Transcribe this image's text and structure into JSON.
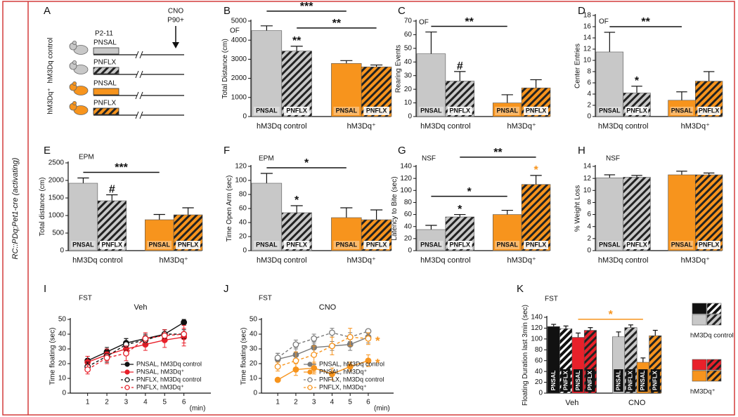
{
  "side_label": "RC::PDq;Pet1-cre (activating)",
  "panel_a": {
    "letter": "A",
    "period": "P2-11",
    "drug": "CNO",
    "drug_time": "P90+",
    "groups": [
      {
        "label": "hM3Dq control",
        "color": "#c8c8c8",
        "rows": [
          {
            "label": "PNSAL",
            "hatched": false
          },
          {
            "label": "PNFLX",
            "hatched": true
          }
        ]
      },
      {
        "label": "hM3Dq⁺",
        "color": "#f7941d",
        "rows": [
          {
            "label": "PNSAL",
            "hatched": false
          },
          {
            "label": "PNFLX",
            "hatched": true
          }
        ]
      }
    ]
  },
  "chart_data": [
    {
      "type": "bar",
      "panel": "B",
      "test": "OF",
      "ylabel": "Total Distance (cm)",
      "ylim": [
        0,
        5000
      ],
      "yticks": [
        0,
        1000,
        2000,
        3000,
        4000,
        5000
      ],
      "groups": [
        "hM3Dq control",
        "hM3Dq⁺"
      ],
      "categories": [
        "PNSAL",
        "PNFLX",
        "PNSAL",
        "PNFLX"
      ],
      "values": [
        4500,
        3430,
        2780,
        2600
      ],
      "errors": [
        250,
        250,
        150,
        100
      ],
      "colors": [
        "#c8c8c8",
        "#c8c8c8",
        "#f7941d",
        "#f7941d"
      ],
      "hatched": [
        false,
        true,
        false,
        true
      ],
      "significance": [
        {
          "bars": [
            1
          ],
          "label": "**"
        },
        {
          "bars": [
            1,
            3
          ],
          "label": "**"
        },
        {
          "bars": [
            0,
            2
          ],
          "label": "***"
        }
      ]
    },
    {
      "type": "bar",
      "panel": "C",
      "test": "OF",
      "ylabel": "Rearing Events",
      "ylim": [
        0,
        70
      ],
      "yticks": [
        0,
        10,
        20,
        30,
        40,
        50,
        60,
        70
      ],
      "groups": [
        "hM3Dq control",
        "hM3Dq⁺"
      ],
      "categories": [
        "PNSAL",
        "PNFLX",
        "PNSAL",
        "PNFLX"
      ],
      "values": [
        46,
        26,
        10,
        21
      ],
      "errors": [
        16,
        7,
        6,
        6
      ],
      "colors": [
        "#c8c8c8",
        "#c8c8c8",
        "#f7941d",
        "#f7941d"
      ],
      "hatched": [
        false,
        true,
        false,
        true
      ],
      "significance": [
        {
          "bars": [
            1
          ],
          "label": "#"
        },
        {
          "bars": [
            0,
            2
          ],
          "label": "**"
        }
      ]
    },
    {
      "type": "bar",
      "panel": "D",
      "test": "OF",
      "ylabel": "Center Entries",
      "ylim": [
        0,
        18
      ],
      "yticks": [
        0,
        2,
        4,
        6,
        8,
        10,
        12,
        14,
        16,
        18
      ],
      "groups": [
        "hM3Dq control",
        "hM3Dq⁺"
      ],
      "categories": [
        "PNSAL",
        "PNFLX",
        "PNSAL",
        "PNFLX"
      ],
      "values": [
        11.5,
        4.2,
        2.9,
        6.3
      ],
      "errors": [
        3.5,
        1.2,
        1.5,
        1.7
      ],
      "colors": [
        "#c8c8c8",
        "#c8c8c8",
        "#f7941d",
        "#f7941d"
      ],
      "hatched": [
        false,
        true,
        false,
        true
      ],
      "significance": [
        {
          "bars": [
            1
          ],
          "label": "*"
        },
        {
          "bars": [
            0,
            2
          ],
          "label": "**"
        }
      ]
    },
    {
      "type": "bar",
      "panel": "E",
      "test": "EPM",
      "ylabel": "Total distance (cm)",
      "ylim": [
        0,
        2500
      ],
      "yticks": [
        0,
        500,
        1000,
        1500,
        2000,
        2500
      ],
      "groups": [
        "hM3Dq control",
        "hM3Dq⁺"
      ],
      "categories": [
        "PNSAL",
        "PNFLX",
        "PNSAL",
        "PNFLX"
      ],
      "values": [
        1920,
        1420,
        880,
        1020
      ],
      "errors": [
        150,
        170,
        150,
        200
      ],
      "colors": [
        "#c8c8c8",
        "#c8c8c8",
        "#f7941d",
        "#f7941d"
      ],
      "hatched": [
        false,
        true,
        false,
        true
      ],
      "significance": [
        {
          "bars": [
            1
          ],
          "label": "#"
        },
        {
          "bars": [
            0,
            2
          ],
          "label": "***"
        }
      ]
    },
    {
      "type": "bar",
      "panel": "F",
      "test": "EPM",
      "ylabel": "Time Open Arm (sec)",
      "ylim": [
        0,
        120
      ],
      "yticks": [
        0,
        20,
        40,
        60,
        80,
        100,
        120
      ],
      "groups": [
        "hM3Dq control",
        "hM3Dq⁺"
      ],
      "categories": [
        "PNSAL",
        "PNFLX",
        "PNSAL",
        "PNFLX"
      ],
      "values": [
        96,
        54,
        47,
        44
      ],
      "errors": [
        14,
        10,
        14,
        14
      ],
      "colors": [
        "#c8c8c8",
        "#c8c8c8",
        "#f7941d",
        "#f7941d"
      ],
      "hatched": [
        false,
        true,
        false,
        true
      ],
      "significance": [
        {
          "bars": [
            1
          ],
          "label": "*"
        },
        {
          "bars": [
            0,
            2
          ],
          "label": "*"
        }
      ]
    },
    {
      "type": "bar",
      "panel": "G",
      "test": "NSF",
      "ylabel": "Latency to Bite (sec)",
      "ylim": [
        0,
        140
      ],
      "yticks": [
        0,
        20,
        40,
        60,
        80,
        100,
        120,
        140
      ],
      "groups": [
        "hM3Dq control",
        "hM3Dq⁺"
      ],
      "categories": [
        "PNSAL",
        "PNFLX",
        "PNSAL",
        "PNFLX"
      ],
      "values": [
        35,
        56,
        60,
        110
      ],
      "errors": [
        7,
        4,
        7,
        15
      ],
      "colors": [
        "#c8c8c8",
        "#c8c8c8",
        "#f7941d",
        "#f7941d"
      ],
      "hatched": [
        false,
        true,
        false,
        true
      ],
      "significance": [
        {
          "bars": [
            1
          ],
          "label": "*"
        },
        {
          "bars": [
            3
          ],
          "label": "*",
          "color": "#f7941d"
        },
        {
          "bars": [
            0,
            2
          ],
          "label": "*"
        },
        {
          "bars": [
            1,
            3
          ],
          "label": "**"
        }
      ]
    },
    {
      "type": "bar",
      "panel": "H",
      "test": "NSF",
      "ylabel": "% Weight Loss",
      "ylim": [
        0,
        14
      ],
      "yticks": [
        0,
        2,
        4,
        6,
        8,
        10,
        12,
        14
      ],
      "groups": [
        "hM3Dq control",
        "hM3Dq⁺"
      ],
      "categories": [
        "PNSAL",
        "PNFLX",
        "PNSAL",
        "PNFLX"
      ],
      "values": [
        12.1,
        12.2,
        12.6,
        12.6
      ],
      "errors": [
        0.5,
        0.3,
        0.6,
        0.3
      ],
      "colors": [
        "#c8c8c8",
        "#c8c8c8",
        "#f7941d",
        "#f7941d"
      ],
      "hatched": [
        false,
        true,
        false,
        true
      ],
      "significance": []
    },
    {
      "type": "line",
      "panel": "I",
      "test": "FST",
      "subtitle": "Veh",
      "ylabel": "Time floating (sec)",
      "xlabel": "(min)",
      "x": [
        1,
        2,
        3,
        4,
        5,
        6
      ],
      "xlim": [
        0.1,
        7.4
      ],
      "xticks": [
        1,
        2,
        3,
        4,
        5,
        6
      ],
      "ylim": [
        0,
        50
      ],
      "yticks": [
        0,
        10,
        20,
        30,
        40,
        50
      ],
      "legend": "lower right",
      "series": [
        {
          "name": "PNSAL, hM3Dq control",
          "color": "#111111",
          "filled": true,
          "dashed": false,
          "values": [
            22,
            28,
            34,
            37,
            40,
            48
          ],
          "errors": [
            3,
            3,
            3,
            3,
            3,
            2
          ]
        },
        {
          "name": "PNSAL, hM3Dq⁺",
          "color": "#e8202a",
          "filled": true,
          "dashed": false,
          "values": [
            21,
            26,
            30,
            33,
            36,
            38
          ],
          "errors": [
            4,
            4,
            4,
            4,
            5,
            6
          ]
        },
        {
          "name": "PNFLX, hM3Dq control",
          "color": "#111111",
          "filled": false,
          "dashed": true,
          "values": [
            18,
            25,
            33,
            36,
            40,
            40
          ],
          "errors": [
            3,
            4,
            4,
            3,
            3,
            3
          ]
        },
        {
          "name": "PNFLX, hM3Dq⁺",
          "color": "#e8202a",
          "filled": false,
          "dashed": true,
          "values": [
            16,
            24,
            27,
            37,
            39,
            40
          ],
          "errors": [
            3,
            4,
            5,
            4,
            4,
            6
          ]
        }
      ],
      "annotations": []
    },
    {
      "type": "line",
      "panel": "J",
      "test": "FST",
      "subtitle": "CNO",
      "ylabel": "Time floating (sec)",
      "xlabel": "(min)",
      "x": [
        1,
        2,
        3,
        4,
        5,
        6
      ],
      "xlim": [
        0.1,
        7.4
      ],
      "xticks": [
        1,
        2,
        3,
        4,
        5,
        6
      ],
      "ylim": [
        0,
        50
      ],
      "yticks": [
        0,
        10,
        20,
        30,
        40,
        50
      ],
      "legend": "lower right",
      "series": [
        {
          "name": "PNSAL, hM3Dq control",
          "color": "#7a7a7a",
          "filled": true,
          "dashed": false,
          "values": [
            23,
            26,
            31,
            32,
            33,
            38
          ],
          "errors": [
            4,
            5,
            4,
            3,
            4,
            4
          ]
        },
        {
          "name": "PNSAL, hM3Dq⁺",
          "color": "#f7941d",
          "filled": true,
          "dashed": false,
          "values": [
            9,
            16,
            17,
            13,
            18,
            22
          ],
          "errors": [
            1,
            4,
            4,
            4,
            3,
            4
          ]
        },
        {
          "name": "PNFLX, hM3Dq control",
          "color": "#7a7a7a",
          "filled": false,
          "dashed": true,
          "values": [
            24,
            33,
            37,
            41,
            38,
            42
          ],
          "errors": [
            3,
            3,
            3,
            3,
            3,
            1
          ]
        },
        {
          "name": "PNFLX, hM3Dq⁺",
          "color": "#f7941d",
          "filled": false,
          "dashed": true,
          "values": [
            18,
            22,
            26,
            32,
            38,
            37
          ],
          "errors": [
            3,
            6,
            6,
            6,
            6,
            4
          ]
        }
      ],
      "annotations": [
        {
          "text": "*",
          "series": 3,
          "color": "#f7941d"
        },
        {
          "text": "*",
          "series": 1,
          "color": "#f7941d"
        }
      ]
    },
    {
      "type": "bar",
      "panel": "K",
      "test": "FST",
      "ylabel": "Floating Duration last 3min (sec)",
      "ylim": [
        0,
        140
      ],
      "yticks": [
        0,
        20,
        40,
        60,
        80,
        100,
        120,
        140
      ],
      "groups": [
        "Veh",
        "CNO"
      ],
      "categories": [
        "PNSAL",
        "PNFLX",
        "PNSAL",
        "PNFLX",
        "PNSAL",
        "PNFLX",
        "PNSAL",
        "PNFLX"
      ],
      "values": [
        123,
        119,
        103,
        116,
        104,
        121,
        57,
        106
      ],
      "errors": [
        4,
        5,
        8,
        5,
        9,
        5,
        8,
        10
      ],
      "colors": [
        "#111111",
        "#111111",
        "#e8202a",
        "#e8202a",
        "#c8c8c8",
        "#c8c8c8",
        "#f7941d",
        "#f7941d"
      ],
      "hatched": [
        false,
        true,
        false,
        true,
        false,
        true,
        false,
        true
      ],
      "significance": [
        {
          "bars": [
            2,
            6
          ],
          "label": "*",
          "color": "#f7941d"
        }
      ],
      "legend": [
        {
          "label": "hM3Dq control",
          "bars": [
            0,
            1,
            4,
            5
          ]
        },
        {
          "label": "hM3Dq⁺",
          "bars": [
            2,
            3,
            6,
            7
          ]
        }
      ]
    }
  ]
}
